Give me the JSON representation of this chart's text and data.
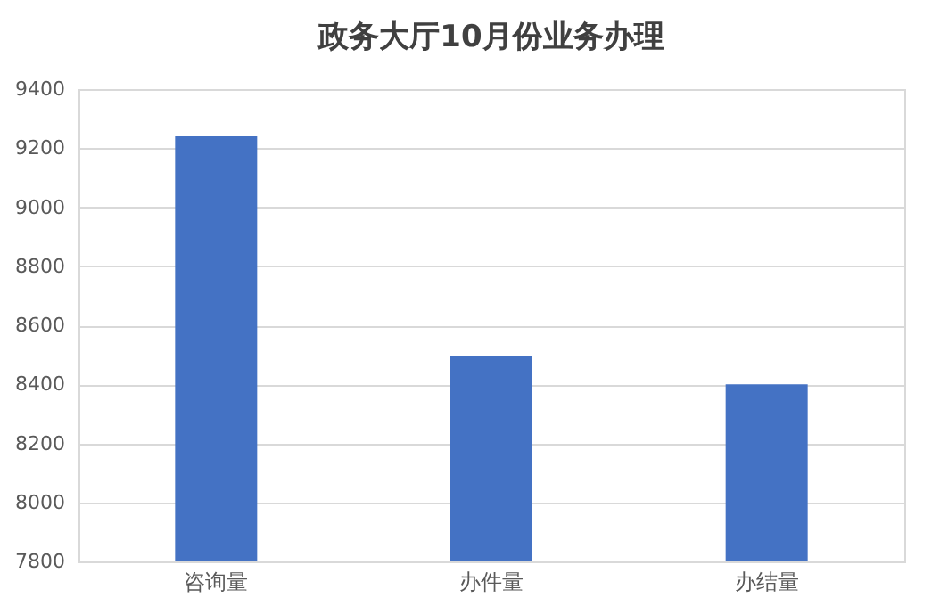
{
  "chart_data": {
    "type": "bar",
    "title": "政务大厅10月份业务办理",
    "categories": [
      "咨询量",
      "办件量",
      "办结量"
    ],
    "values": [
      9240,
      8495,
      8400
    ],
    "color": "#4472c4",
    "ylim": [
      7800,
      9400
    ],
    "yticks": [
      7800,
      8000,
      8200,
      8400,
      8600,
      8800,
      9000,
      9200,
      9400
    ],
    "grid": "y",
    "legend": false
  }
}
